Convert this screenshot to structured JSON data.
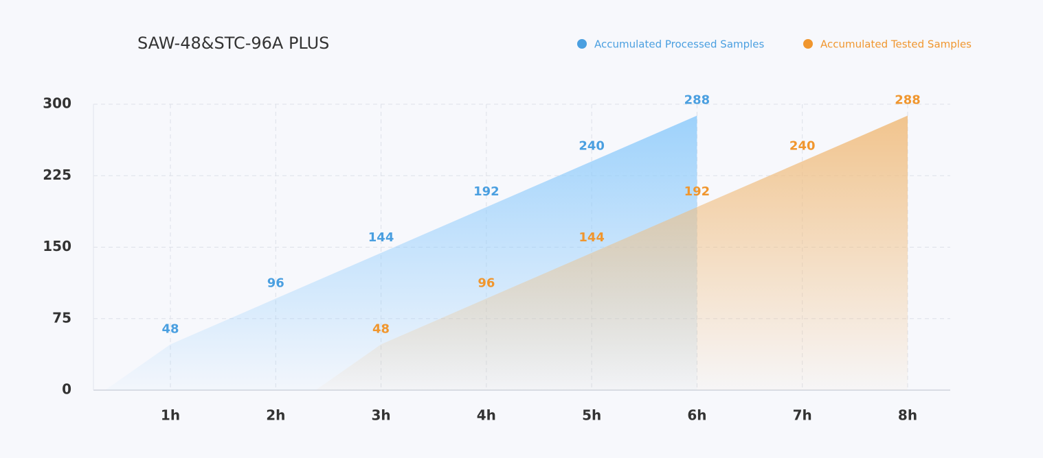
{
  "chart_data": {
    "type": "area",
    "title": "SAW-48&STC-96A PLUS",
    "categories": [
      "1h",
      "2h",
      "3h",
      "4h",
      "5h",
      "6h",
      "7h",
      "8h"
    ],
    "series": [
      {
        "name": "Accumulated Processed Samples",
        "color": "#4a9fe0",
        "fill": "#8ecbfb",
        "values": [
          48,
          96,
          144,
          192,
          240,
          288,
          null,
          null
        ]
      },
      {
        "name": "Accumulated Tested Samples",
        "color": "#f0962e",
        "fill": "#f0bb7a",
        "values": [
          null,
          null,
          48,
          96,
          144,
          192,
          240,
          288
        ]
      }
    ],
    "ylim": [
      0,
      300
    ],
    "yticks": [
      0,
      75,
      150,
      225,
      300
    ],
    "grid": true,
    "legend": "top-right"
  }
}
